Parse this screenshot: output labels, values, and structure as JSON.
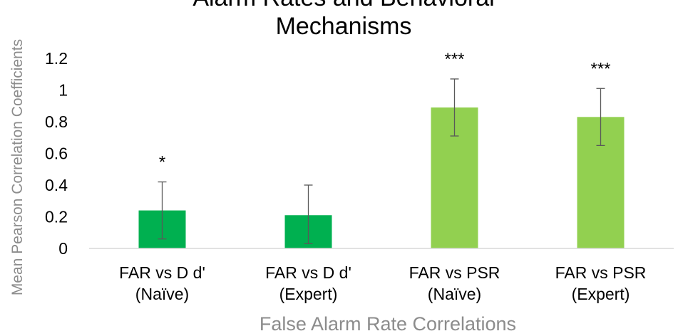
{
  "chart_data": {
    "type": "bar",
    "title_lines": [
      "Alarm Rates and Behavioral",
      "Mechanisms"
    ],
    "xlabel": "False Alarm Rate Correlations",
    "ylabel": "Mean Pearson Correlation Coefficients",
    "ylim": [
      0,
      1.2
    ],
    "yticks": [
      "0",
      "0.2",
      "0.4",
      "0.6",
      "0.8",
      "1",
      "1.2"
    ],
    "grid": false,
    "categories": [
      [
        "FAR vs D d'",
        "(Naïve)"
      ],
      [
        "FAR vs D d'",
        "(Expert)"
      ],
      [
        "FAR vs PSR",
        "(Naïve)"
      ],
      [
        "FAR vs PSR",
        "(Expert)"
      ]
    ],
    "values": [
      0.24,
      0.21,
      0.89,
      0.83
    ],
    "error_low": [
      0.06,
      0.03,
      0.71,
      0.65
    ],
    "error_high": [
      0.42,
      0.4,
      1.07,
      1.01
    ],
    "significance": [
      "*",
      "",
      "***",
      "***"
    ],
    "bar_colors": [
      "#00b050",
      "#00b050",
      "#92d050",
      "#92d050"
    ],
    "error_bar_color": "#595959",
    "axis_line_color": "#d9d9d9"
  }
}
